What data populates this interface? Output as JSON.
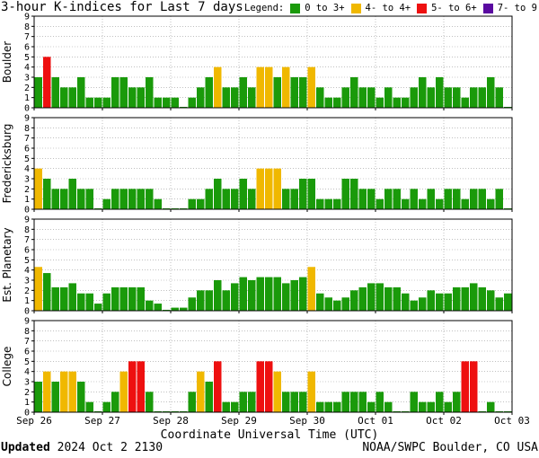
{
  "title": "3-hour K-indices for Last 7 days",
  "legend": {
    "label": "Legend:",
    "items": [
      {
        "label": "0 to 3+",
        "color": "#1a9a0a"
      },
      {
        "label": "4- to 4+",
        "color": "#f0b800"
      },
      {
        "label": "5- to 6+",
        "color": "#ee1010"
      },
      {
        "label": "7- to 9",
        "color": "#5a0aa0"
      }
    ]
  },
  "footer": {
    "updated_label": "Updated",
    "updated_value": "2024 Oct  2 2130",
    "credit": "NOAA/SWPC Boulder, CO USA"
  },
  "chart_data": {
    "type": "bar",
    "xlabel": "Coordinate Universal Time (UTC)",
    "x_tick_labels": [
      "Sep 26",
      "Sep 27",
      "Sep 28",
      "Sep 29",
      "Sep 30",
      "Oct 01",
      "Oct 02",
      "Oct 03"
    ],
    "ylim": [
      0,
      9
    ],
    "y_ticks": [
      0,
      1,
      2,
      3,
      4,
      5,
      6,
      7,
      8,
      9
    ],
    "grid": true,
    "panels": [
      {
        "name": "Boulder",
        "values": [
          3,
          5,
          3,
          2,
          2,
          3,
          1,
          1,
          1,
          3,
          3,
          2,
          2,
          3,
          1,
          1,
          1,
          0,
          1,
          2,
          3,
          4,
          2,
          2,
          3,
          2,
          4,
          4,
          3,
          4,
          3,
          3,
          4,
          2,
          1,
          1,
          2,
          3,
          2,
          2,
          1,
          2,
          1,
          1,
          2,
          3,
          2,
          3,
          2,
          2,
          1,
          2,
          2,
          3,
          2,
          0
        ]
      },
      {
        "name": "Fredericksburg",
        "values": [
          4,
          3,
          2,
          2,
          3,
          2,
          2,
          0,
          1,
          2,
          2,
          2,
          2,
          2,
          1,
          0,
          0,
          0,
          1,
          1,
          2,
          3,
          2,
          2,
          3,
          2,
          4,
          4,
          4,
          2,
          2,
          3,
          3,
          1,
          1,
          1,
          3,
          3,
          2,
          2,
          1,
          2,
          2,
          1,
          2,
          1,
          2,
          1,
          2,
          2,
          1,
          2,
          2,
          1,
          2,
          0
        ]
      },
      {
        "name": "Est. Planetary",
        "values": [
          4.3,
          3.7,
          2.3,
          2.3,
          2.7,
          1.7,
          1.7,
          0.7,
          1.7,
          2.3,
          2.3,
          2.3,
          2.3,
          1,
          0.7,
          0,
          0.3,
          0.3,
          1.3,
          2,
          2,
          3,
          2,
          2.7,
          3.3,
          3,
          3.3,
          3.3,
          3.3,
          2.7,
          3,
          3.3,
          4.3,
          1.7,
          1.3,
          1,
          1.3,
          2,
          2.3,
          2.7,
          2.7,
          2.3,
          2.3,
          1.7,
          1,
          1.3,
          2,
          1.7,
          1.7,
          2.3,
          2.3,
          2.7,
          2.3,
          2,
          1.3,
          1.7
        ]
      },
      {
        "name": "College",
        "values": [
          3,
          4,
          3,
          4,
          4,
          3,
          1,
          0,
          1,
          2,
          4,
          5,
          5,
          2,
          0,
          0,
          0,
          0,
          2,
          4,
          3,
          5,
          1,
          1,
          2,
          2,
          5,
          5,
          4,
          2,
          2,
          2,
          4,
          1,
          1,
          1,
          2,
          2,
          2,
          1,
          2,
          1,
          0,
          0,
          2,
          1,
          1,
          2,
          1,
          2,
          5,
          5,
          0,
          1,
          0,
          0
        ]
      }
    ]
  }
}
